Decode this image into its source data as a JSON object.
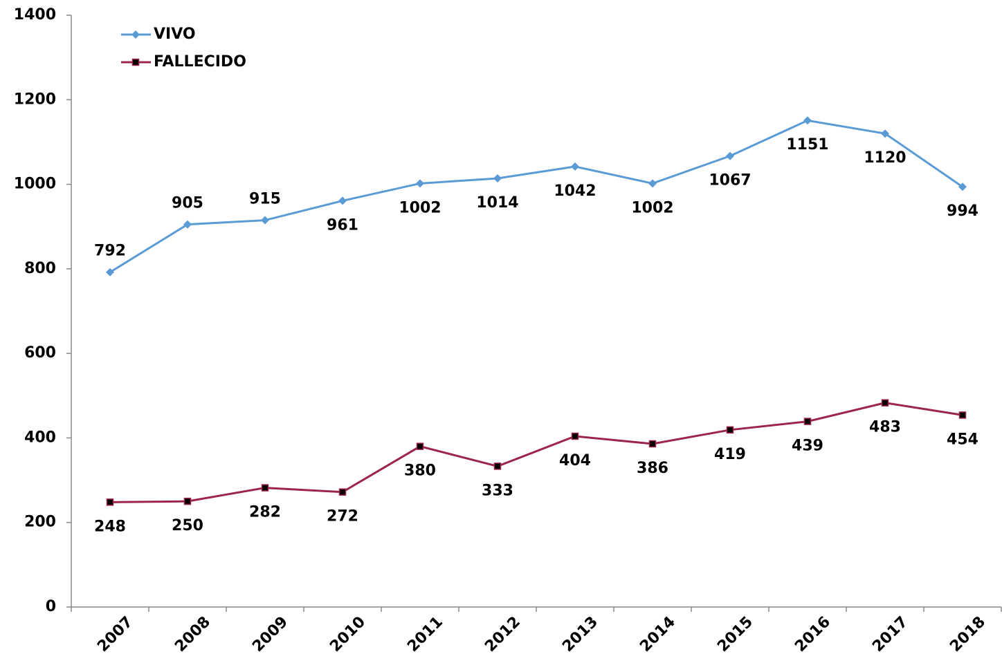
{
  "chart_data": {
    "type": "line",
    "categories": [
      "2007",
      "2008",
      "2009",
      "2010",
      "2011",
      "2012",
      "2013",
      "2014",
      "2015",
      "2016",
      "2017",
      "2018"
    ],
    "series": [
      {
        "name": "VIVO",
        "color": "#5b9bd5",
        "values": [
          792,
          905,
          915,
          961,
          1002,
          1014,
          1042,
          1002,
          1067,
          1151,
          1120,
          994
        ]
      },
      {
        "name": "FALLECIDO",
        "color": "#9e2450",
        "values": [
          248,
          250,
          282,
          272,
          380,
          333,
          404,
          386,
          419,
          439,
          483,
          454
        ]
      }
    ],
    "ylim": [
      0,
      1400
    ],
    "yticks": [
      0,
      200,
      400,
      600,
      800,
      1000,
      1200,
      1400
    ],
    "grid": false,
    "legend": "top-left"
  }
}
